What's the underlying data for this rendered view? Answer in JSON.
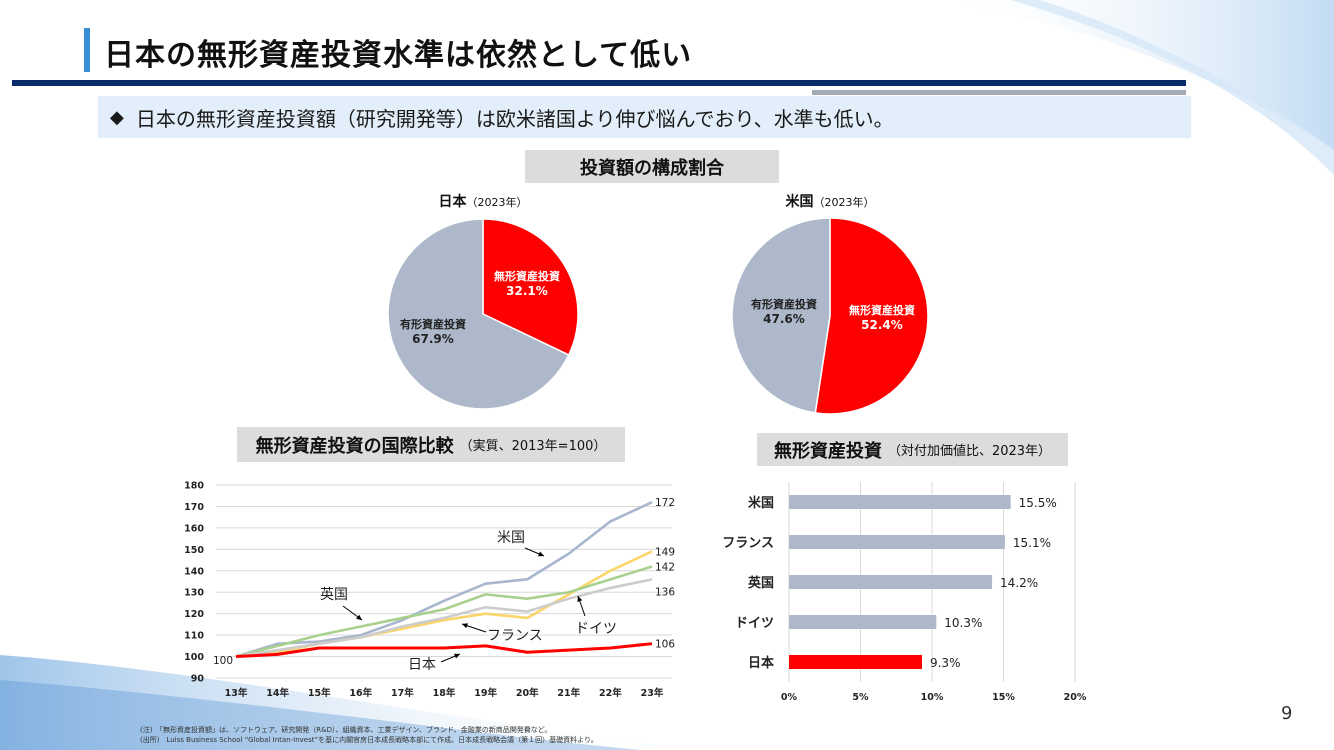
{
  "header": {
    "title": "日本の無形資産投資水準は依然として低い"
  },
  "lead": {
    "bullet": "◆",
    "text": "日本の無形資産投資額（研究開発等）は欧米諸国より伸び悩んでおり、水準も低い。"
  },
  "colors": {
    "red": "#ff0000",
    "gray_blue": "#adb9ca",
    "accent": "#3a8fd4",
    "navy": "#0a2c6a"
  },
  "pie_section": {
    "title": "投資額の構成割合"
  },
  "line_section": {
    "title": "無形資産投資の国際比較",
    "subtitle": "（実質、2013年=100）"
  },
  "bar_section": {
    "title": "無形資産投資",
    "subtitle": "（対付加価値比、2023年）"
  },
  "chart_data": [
    {
      "type": "pie",
      "title": "日本",
      "subtitle": "（2023年）",
      "slices": [
        {
          "label": "無形資産投資",
          "value_label": "32.1%",
          "value": 32.1,
          "color": "#ff0000"
        },
        {
          "label": "有形資産投資",
          "value_label": "67.9%",
          "value": 67.9,
          "color": "#adb9ca"
        }
      ]
    },
    {
      "type": "pie",
      "title": "米国",
      "subtitle": "（2023年）",
      "slices": [
        {
          "label": "無形資産投資",
          "value_label": "52.4%",
          "value": 52.4,
          "color": "#ff0000"
        },
        {
          "label": "有形資産投資",
          "value_label": "47.6%",
          "value": 47.6,
          "color": "#adb9ca"
        }
      ]
    },
    {
      "type": "line",
      "categories": [
        "13年",
        "14年",
        "15年",
        "16年",
        "17年",
        "18年",
        "19年",
        "20年",
        "21年",
        "22年",
        "23年"
      ],
      "ylim": [
        90,
        180
      ],
      "yticks": [
        90,
        100,
        110,
        120,
        130,
        140,
        150,
        160,
        170,
        180
      ],
      "grid": true,
      "series": [
        {
          "name": "米国",
          "color": "#a8b6ce",
          "values": [
            100,
            106,
            107,
            110,
            117,
            126,
            134,
            136,
            148,
            163,
            172
          ],
          "end_label": "172"
        },
        {
          "name": "ドイツ",
          "color": "#fbd56a",
          "values": [
            100,
            102,
            106,
            109,
            113,
            117,
            120,
            118,
            129,
            140,
            149
          ],
          "end_label": "149"
        },
        {
          "name": "英国",
          "color": "#a9d18e",
          "values": [
            100,
            105,
            110,
            114,
            118,
            122,
            129,
            127,
            130,
            136,
            142
          ],
          "end_label": "142"
        },
        {
          "name": "フランス",
          "color": "#cccccc",
          "values": [
            100,
            103,
            106,
            109,
            114,
            118,
            123,
            121,
            127,
            132,
            136
          ],
          "end_label": "136"
        },
        {
          "name": "日本",
          "color": "#ff0000",
          "values": [
            100,
            101,
            104,
            104,
            104,
            104,
            105,
            102,
            103,
            104,
            106
          ],
          "end_label": "106"
        }
      ],
      "start_label": "100"
    },
    {
      "type": "bar",
      "orientation": "horizontal",
      "categories": [
        "米国",
        "フランス",
        "英国",
        "ドイツ",
        "日本"
      ],
      "values": [
        15.5,
        15.1,
        14.2,
        10.3,
        9.3
      ],
      "value_labels": [
        "15.5%",
        "15.1%",
        "14.2%",
        "10.3%",
        "9.3%"
      ],
      "colors": [
        "#adb9ca",
        "#adb9ca",
        "#adb9ca",
        "#adb9ca",
        "#ff0000"
      ],
      "xlim": [
        0,
        20
      ],
      "xticks": [
        "0%",
        "5%",
        "10%",
        "15%",
        "20%"
      ],
      "grid": true
    }
  ],
  "notes": [
    "(注)　「無形資産投資額」は、ソフトウェア、研究開発（R&D）、組織資本、工業デザイン、ブランド、金融業の新商品開発費など。",
    "(出所)　Luiss Business School “Global Intan-Invest”を基に内閣官房日本成長戦略本部にて作成。日本成長戦略会議（第１回）基礎資料より。"
  ],
  "page_number": "9"
}
